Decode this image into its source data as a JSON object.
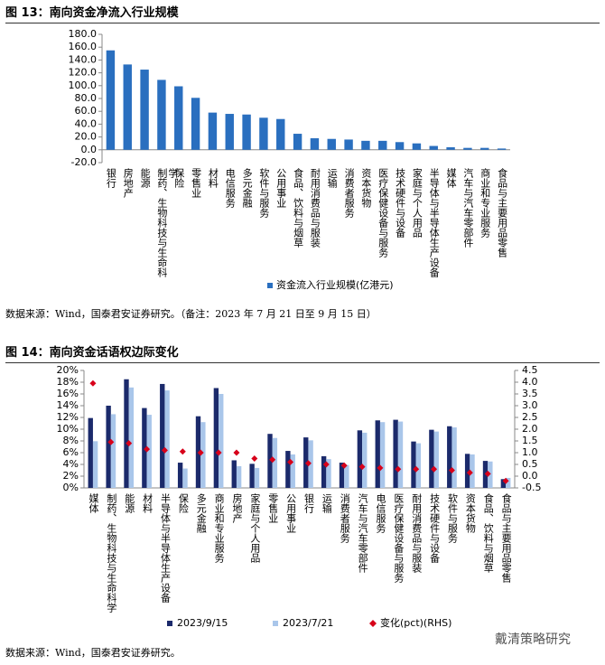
{
  "chart_data": [
    {
      "type": "bar",
      "title": "图 13：南向资金净流入行业规模",
      "source": "数据来源：Wind，国泰君安证券研究。（备注：2023 年 7 月 21 日至 9 月 15 日）",
      "categories": [
        "银行",
        "房地产",
        "能源",
        "制药、生物科技与生命科学",
        "保险",
        "零售业",
        "材料",
        "电信服务",
        "多元金融",
        "软件与服务",
        "公用事业",
        "食品、饮料与烟草",
        "耐用消费品与服装",
        "运输",
        "消费者服务",
        "资本货物",
        "医疗保健设备与服务",
        "技术硬件与设备",
        "家庭与个人用品",
        "半导体与半导体生产设备",
        "媒体",
        "汽车与汽车零部件",
        "商业和专业服务",
        "食品与主要用品零售"
      ],
      "series": [
        {
          "name": "资金流入行业规模(亿港元)",
          "color": "#2a6fbf",
          "values": [
            155,
            133,
            125,
            109,
            99,
            81,
            58,
            56,
            55,
            50,
            48,
            25,
            18,
            17,
            16,
            14,
            14,
            12,
            10,
            6,
            4,
            3,
            3,
            2
          ]
        }
      ],
      "ylim": [
        -20,
        180
      ],
      "yticks": [
        {
          "value": -20,
          "label": "-20.0"
        },
        {
          "value": 0,
          "label": "0.0"
        },
        {
          "value": 20,
          "label": "20.0"
        },
        {
          "value": 40,
          "label": "40.0"
        },
        {
          "value": 60,
          "label": "60.0"
        },
        {
          "value": 80,
          "label": "80.0"
        },
        {
          "value": 100,
          "label": "100.0"
        },
        {
          "value": 120,
          "label": "120.0"
        },
        {
          "value": 140,
          "label": "140.0"
        },
        {
          "value": 160,
          "label": "160.0"
        },
        {
          "value": 180,
          "label": "180.0"
        }
      ],
      "legend": "bottom"
    },
    {
      "type": "combo",
      "title": "图 14：南向资金话语权边际变化",
      "source": "数据来源：Wind，国泰君安证券研究。",
      "categories": [
        "媒体",
        "制药、生物科技与生命科学",
        "能源",
        "材料",
        "半导体与半导体生产设备",
        "保险",
        "多元金融",
        "商业和专业服务",
        "房地产",
        "家庭与个人用品",
        "零售业",
        "公用事业",
        "银行",
        "运输",
        "消费者服务",
        "汽车与汽车零部件",
        "电信服务",
        "医疗保健设备与服务",
        "耐用消费品与服装",
        "技术硬件与设备",
        "软件与服务",
        "资本货物",
        "食品、饮料与烟草",
        "食品与主要用品零售"
      ],
      "series": [
        {
          "name": "2023/9/15",
          "color": "#1b2a6b",
          "values": [
            11.9,
            14.0,
            18.5,
            13.6,
            17.7,
            4.3,
            12.2,
            17.0,
            4.7,
            4.1,
            9.2,
            6.3,
            8.6,
            5.4,
            4.3,
            9.8,
            11.5,
            11.6,
            7.9,
            9.9,
            10.5,
            5.8,
            4.6,
            1.5
          ]
        },
        {
          "name": "2023/7/21",
          "color": "#a9c6ea",
          "values": [
            7.95,
            12.55,
            17.1,
            12.45,
            16.6,
            3.3,
            11.2,
            16.0,
            3.7,
            3.4,
            8.5,
            5.7,
            8.1,
            4.9,
            3.9,
            9.4,
            11.2,
            11.3,
            7.6,
            9.6,
            10.3,
            5.7,
            4.5,
            1.7
          ]
        },
        {
          "name": "变化(pct)(RHS)",
          "color": "#d7001a",
          "axis": "y2",
          "values": [
            3.95,
            1.45,
            1.4,
            1.15,
            1.1,
            1.05,
            1.0,
            1.0,
            1.0,
            0.75,
            0.7,
            0.6,
            0.55,
            0.5,
            0.45,
            0.4,
            0.35,
            0.3,
            0.3,
            0.3,
            0.25,
            0.15,
            0.1,
            -0.2
          ]
        }
      ],
      "ylim": [
        0,
        20
      ],
      "yticks": [
        {
          "value": 0,
          "label": "0%"
        },
        {
          "value": 2,
          "label": "2%"
        },
        {
          "value": 4,
          "label": "4%"
        },
        {
          "value": 6,
          "label": "6%"
        },
        {
          "value": 8,
          "label": "8%"
        },
        {
          "value": 10,
          "label": "10%"
        },
        {
          "value": 12,
          "label": "12%"
        },
        {
          "value": 14,
          "label": "14%"
        },
        {
          "value": 16,
          "label": "16%"
        },
        {
          "value": 18,
          "label": "18%"
        },
        {
          "value": 20,
          "label": "20%"
        }
      ],
      "y2lim": [
        -0.5,
        4.5
      ],
      "y2ticks": [
        -0.5,
        {
          "value": 0,
          "label": "0.0"
        },
        0.5,
        {
          "value": 1,
          "label": "1.0"
        },
        1.5,
        {
          "value": 2,
          "label": "2.0"
        },
        2.5,
        {
          "value": 3,
          "label": "3.0"
        },
        3.5,
        {
          "value": 4,
          "label": "4.0"
        },
        4.5
      ],
      "legend": "bottom"
    }
  ],
  "watermark": "戴清策略研究"
}
